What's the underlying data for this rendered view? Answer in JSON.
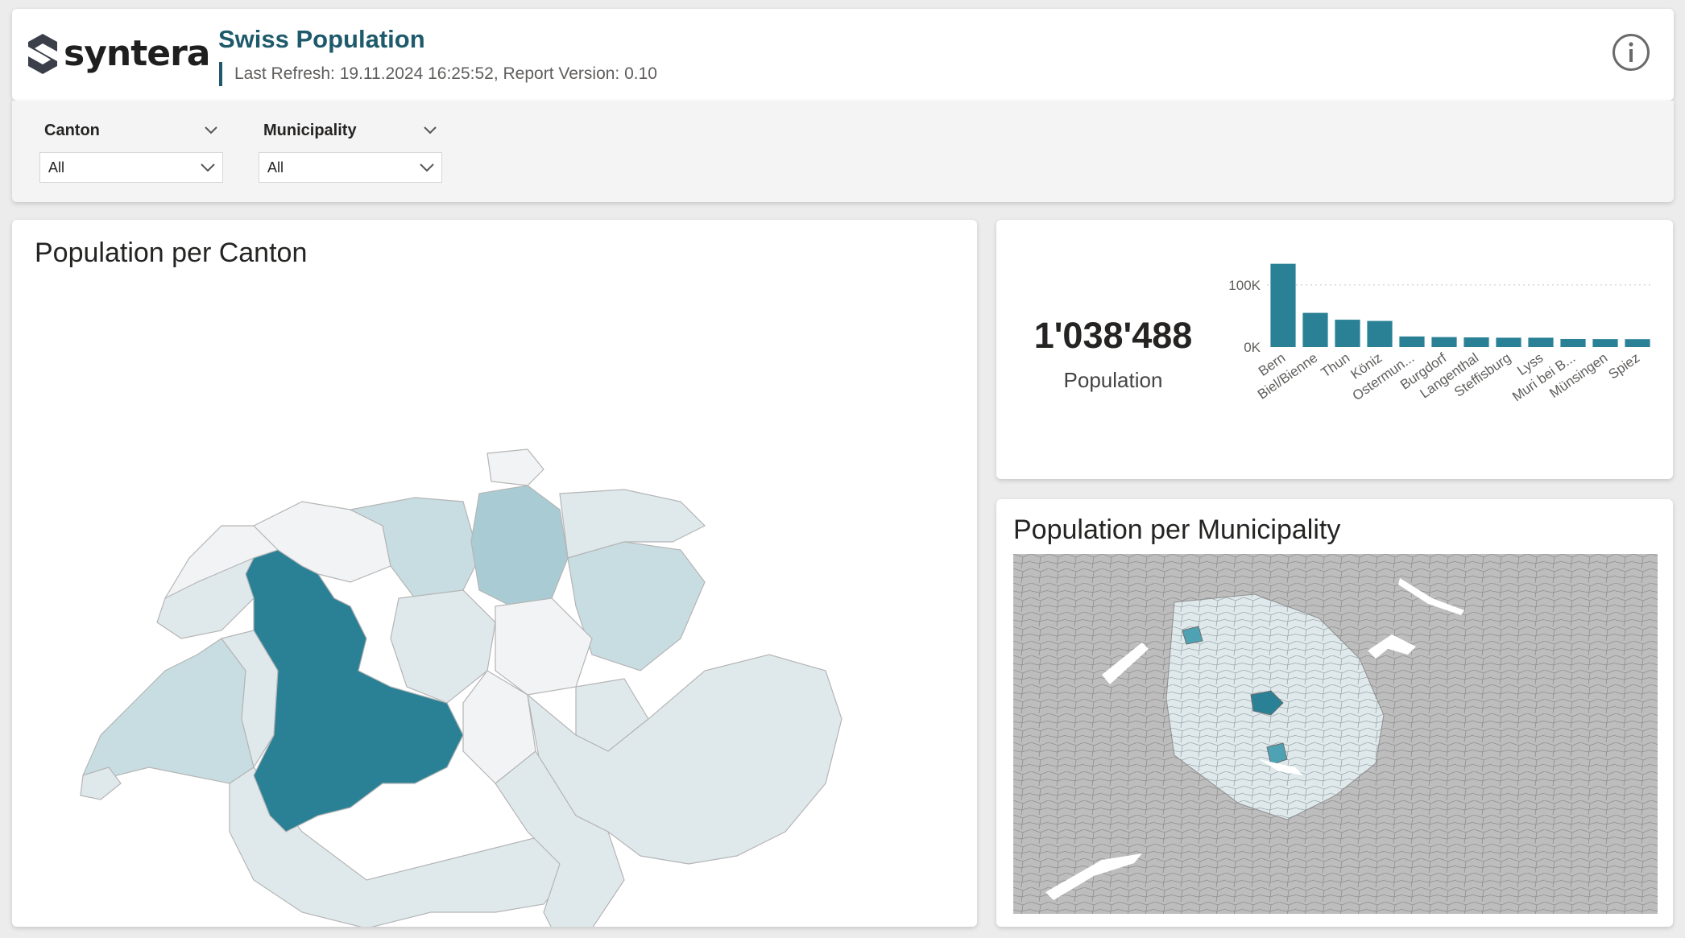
{
  "header": {
    "logo_text": "syntera",
    "title": "Swiss Population",
    "refresh": "Last Refresh: 19.11.2024 16:25:52, Report Version: 0.10",
    "info_icon": "info-icon"
  },
  "filters": [
    {
      "label": "Canton",
      "value": "All"
    },
    {
      "label": "Municipality",
      "value": "All"
    }
  ],
  "canton_map": {
    "title": "Population per Canton",
    "highlight_color": "#2a8196",
    "scale_colors": [
      "#f1f3f4",
      "#dfe9ec",
      "#c8dde2",
      "#a9ccd4",
      "#2a8196"
    ]
  },
  "kpi": {
    "value": "1'038'488",
    "label": "Population"
  },
  "chart_data": {
    "type": "bar",
    "categories": [
      "Bern",
      "Biel/Bienne",
      "Thun",
      "Köniz",
      "Ostermun...",
      "Burgdorf",
      "Langenthal",
      "Steffisburg",
      "Lyss",
      "Muri bei B...",
      "Münsingen",
      "Spiez"
    ],
    "values": [
      134000,
      55000,
      44000,
      42000,
      17000,
      16000,
      15500,
      15000,
      15000,
      13000,
      12800,
      12700
    ],
    "yticks": [
      "0K",
      "100K"
    ],
    "ylim": [
      0,
      140000
    ],
    "color": "#2a8196",
    "grid": true
  },
  "muni_map": {
    "title": "Population per Municipality"
  }
}
